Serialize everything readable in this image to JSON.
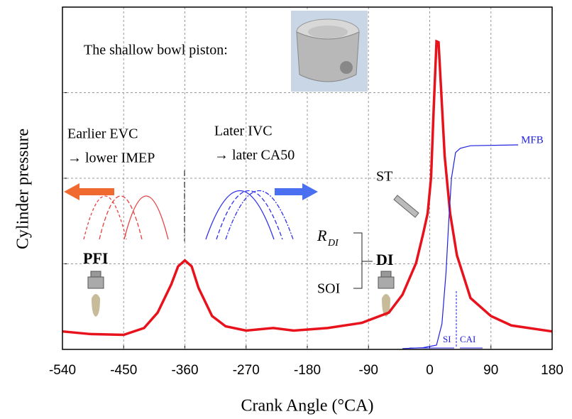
{
  "chart_data": {
    "type": "line",
    "x_label": "Crank Angle (°CA)",
    "y_label": "Cylinder pressure",
    "xlim": [
      -540,
      180
    ],
    "xticks": [
      -540,
      -450,
      -360,
      -270,
      -180,
      -90,
      0,
      90,
      180
    ],
    "ylim": [
      0,
      4
    ],
    "yticks": [
      0,
      1,
      2,
      3,
      4
    ],
    "grid": true,
    "series": [
      {
        "color": "#e8121c",
        "x": [
          -540,
          -500,
          -450,
          -420,
          -400,
          -380,
          -370,
          -360,
          -350,
          -340,
          -320,
          -300,
          -270,
          -230,
          -200,
          -150,
          -100,
          -60,
          -40,
          -20,
          -10,
          -3,
          2,
          6,
          10,
          13,
          17,
          22,
          30,
          40,
          60,
          90,
          120,
          180
        ],
        "values": [
          0.21,
          0.18,
          0.17,
          0.25,
          0.43,
          0.76,
          0.97,
          1.04,
          0.97,
          0.72,
          0.39,
          0.27,
          0.22,
          0.25,
          0.22,
          0.25,
          0.31,
          0.43,
          0.64,
          1.01,
          1.34,
          1.59,
          2.01,
          2.84,
          3.6,
          3.59,
          3.0,
          2.26,
          1.59,
          1.1,
          0.6,
          0.39,
          0.28,
          0.21
        ]
      },
      {
        "name": "MFB",
        "color": "#2020e0",
        "x": [
          -40,
          -10,
          10,
          18,
          24,
          28,
          32,
          38,
          45,
          60,
          130
        ],
        "values": [
          0.01,
          0.02,
          0.05,
          0.3,
          0.9,
          1.5,
          2.0,
          2.3,
          2.35,
          2.38,
          2.39
        ]
      }
    ],
    "annotations": {
      "piston": "The shallow bowl piston:",
      "evc_1": "Earlier EVC",
      "evc_2": "→ lower IMEP",
      "ivc_1": "Later IVC",
      "ivc_2": "→ later CA50",
      "st": "ST",
      "r": "R",
      "r_sub": "DI",
      "di": "DI",
      "soi": "SOI",
      "pfi": "PFI",
      "si": "SI",
      "cai": "CAI"
    }
  }
}
